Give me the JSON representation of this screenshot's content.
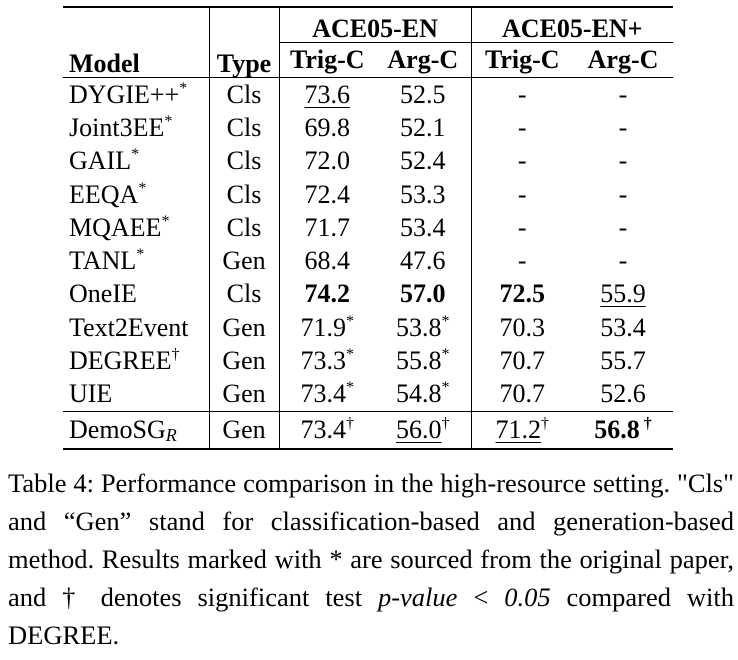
{
  "table": {
    "header": {
      "model": "Model",
      "type": "Type",
      "group1": "ACE05-EN",
      "group2": "ACE05-EN+",
      "trig": "Trig-C",
      "arg": "Arg-C"
    },
    "rows": [
      {
        "model": "DYGIE++",
        "model_sup": "*",
        "type": "Cls",
        "c1": {
          "v": "73.6",
          "u": true
        },
        "c2": {
          "v": "52.5"
        },
        "c3": {
          "v": "-"
        },
        "c4": {
          "v": "-"
        }
      },
      {
        "model": "Joint3EE",
        "model_sup": "*",
        "type": "Cls",
        "c1": {
          "v": "69.8"
        },
        "c2": {
          "v": "52.1"
        },
        "c3": {
          "v": "-"
        },
        "c4": {
          "v": "-"
        }
      },
      {
        "model": "GAIL",
        "model_sup": "*",
        "type": "Cls",
        "c1": {
          "v": "72.0"
        },
        "c2": {
          "v": "52.4"
        },
        "c3": {
          "v": "-"
        },
        "c4": {
          "v": "-"
        }
      },
      {
        "model": "EEQA",
        "model_sup": "*",
        "type": "Cls",
        "c1": {
          "v": "72.4"
        },
        "c2": {
          "v": "53.3"
        },
        "c3": {
          "v": "-"
        },
        "c4": {
          "v": "-"
        }
      },
      {
        "model": "MQAEE",
        "model_sup": "*",
        "type": "Cls",
        "c1": {
          "v": "71.7"
        },
        "c2": {
          "v": "53.4"
        },
        "c3": {
          "v": "-"
        },
        "c4": {
          "v": "-"
        }
      },
      {
        "model": "TANL",
        "model_sup": "*",
        "type": "Gen",
        "c1": {
          "v": "68.4"
        },
        "c2": {
          "v": "47.6"
        },
        "c3": {
          "v": "-"
        },
        "c4": {
          "v": "-"
        }
      },
      {
        "model": "OneIE",
        "model_sup": "",
        "type": "Cls",
        "c1": {
          "v": "74.2",
          "b": true
        },
        "c2": {
          "v": "57.0",
          "b": true
        },
        "c3": {
          "v": "72.5",
          "b": true
        },
        "c4": {
          "v": "55.9",
          "u": true
        }
      },
      {
        "model": "Text2Event",
        "model_sup": "",
        "type": "Gen",
        "c1": {
          "v": "71.9",
          "s": "*"
        },
        "c2": {
          "v": "53.8",
          "s": "*"
        },
        "c3": {
          "v": "70.3"
        },
        "c4": {
          "v": "53.4"
        }
      },
      {
        "model": "DEGREE",
        "model_sup": "†",
        "type": "Gen",
        "c1": {
          "v": "73.3",
          "s": "*"
        },
        "c2": {
          "v": "55.8",
          "s": "*"
        },
        "c3": {
          "v": "70.7"
        },
        "c4": {
          "v": "55.7"
        }
      },
      {
        "model": "UIE",
        "model_sup": "",
        "type": "Gen",
        "c1": {
          "v": "73.4",
          "s": "*"
        },
        "c2": {
          "v": "54.8",
          "s": "*"
        },
        "c3": {
          "v": "70.7"
        },
        "c4": {
          "v": "52.6"
        }
      }
    ],
    "last_row": {
      "model": "DemoSG",
      "model_sub": "R",
      "type": "Gen",
      "c1": {
        "v": "73.4",
        "s": "†"
      },
      "c2": {
        "v": "56.0",
        "s": "†",
        "u": true
      },
      "c3": {
        "v": "71.2",
        "s": "†",
        "u": true
      },
      "c4": {
        "v": "56.8",
        "s": " †",
        "b": true
      }
    }
  },
  "caption": {
    "part1": "Table 4: Performance comparison in the high-resource setting. \"Cls\" and “Gen” stand for classification-based and generation-based method. Results marked with * are sourced from the original paper, and † denotes significant test ",
    "pvalue": "p-value",
    "lt": " < ",
    "threshold": "0.05",
    "part2": " compared with DEGREE."
  }
}
